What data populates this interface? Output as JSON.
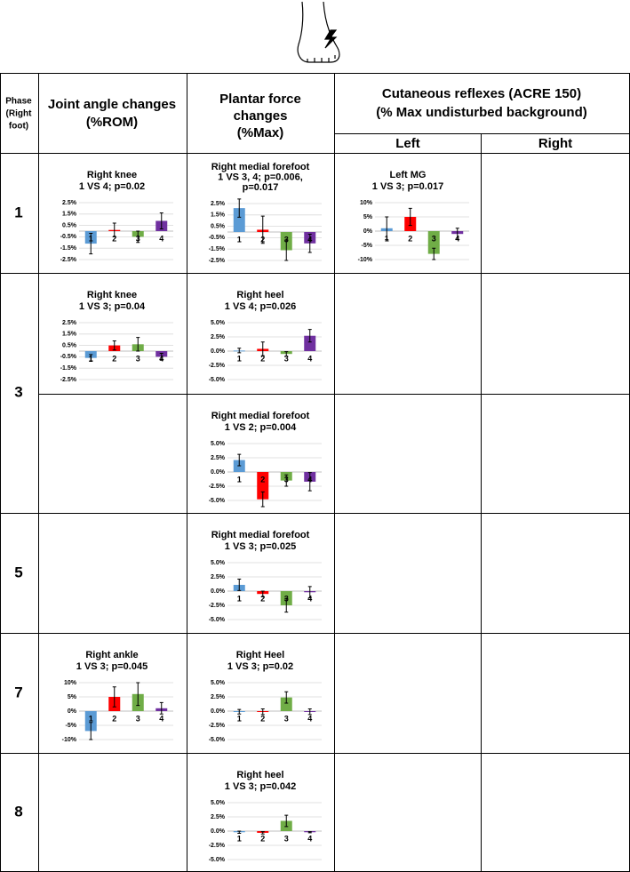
{
  "table": {
    "header": {
      "phase": [
        "Phase",
        "(Right",
        "foot)"
      ],
      "joint": [
        "Joint angle changes",
        "(%ROM)"
      ],
      "plantar": [
        "Plantar force",
        "changes",
        "(%Max)"
      ],
      "cutaneous": [
        "Cutaneous reflexes (ACRE 150)",
        "(% Max undisturbed background)"
      ],
      "left": "Left",
      "right": "Right"
    },
    "phases": [
      "1",
      "3",
      "5",
      "7",
      "8"
    ]
  },
  "colors": [
    "#5b9bd5",
    "#ff0000",
    "#70ad47",
    "#7030a0"
  ],
  "charts": [
    {
      "type": "bar",
      "title": [
        "Right knee",
        "1 VS 4; p=0.02"
      ],
      "categories": [
        "1",
        "2",
        "3",
        "4"
      ],
      "values": [
        -1.1,
        0.1,
        -0.5,
        0.9
      ],
      "errors": [
        0.9,
        0.6,
        0.5,
        0.7
      ],
      "ylim": [
        -2.5,
        2.5
      ],
      "yticks": [
        {
          "value": 2.5,
          "label": "2.5%"
        },
        {
          "value": 1.5,
          "label": "1.5%"
        },
        {
          "value": 0.5,
          "label": "0.5%"
        },
        {
          "value": -0.5,
          "label": "-0.5%"
        },
        {
          "value": -1.5,
          "label": "-1.5%"
        },
        {
          "value": -2.5,
          "label": "-2.5%"
        }
      ]
    },
    {
      "type": "bar",
      "title": [
        "Right medial forefoot",
        "1 VS 3, 4; p=0.006,",
        "p=0.017"
      ],
      "categories": [
        "1",
        "2",
        "3",
        "4"
      ],
      "values": [
        2.1,
        0.2,
        -1.6,
        -1.0
      ],
      "errors": [
        0.8,
        1.2,
        0.9,
        0.8
      ],
      "ylim": [
        -2.5,
        2.5
      ],
      "yticks": [
        {
          "value": 2.5,
          "label": "2.5%"
        },
        {
          "value": 1.5,
          "label": "1.5%"
        },
        {
          "value": 0.5,
          "label": "0.5%"
        },
        {
          "value": -0.5,
          "label": "-0.5%"
        },
        {
          "value": -1.5,
          "label": "-1.5%"
        },
        {
          "value": -2.5,
          "label": "-2.5%"
        }
      ]
    },
    {
      "type": "bar",
      "title": [
        "Left MG",
        "1 VS 3; p=0.017"
      ],
      "categories": [
        "1",
        "2",
        "3",
        "4"
      ],
      "values": [
        1,
        5,
        -8,
        -1
      ],
      "errors": [
        4,
        3,
        2,
        2
      ],
      "ylim": [
        -10,
        10
      ],
      "yticks": [
        {
          "value": 10,
          "label": "10%"
        },
        {
          "value": 5,
          "label": "5%"
        },
        {
          "value": 0,
          "label": "0%"
        },
        {
          "value": -5,
          "label": "-5%"
        },
        {
          "value": -10,
          "label": "-10%"
        }
      ]
    },
    {
      "type": "bar",
      "title": [
        "Right knee",
        "1 VS 3; p=0.04"
      ],
      "categories": [
        "1",
        "2",
        "3",
        "4"
      ],
      "values": [
        -0.6,
        0.5,
        0.6,
        -0.5
      ],
      "errors": [
        0.3,
        0.4,
        0.6,
        0.3
      ],
      "ylim": [
        -2.5,
        2.5
      ],
      "yticks": [
        {
          "value": 2.5,
          "label": "2.5%"
        },
        {
          "value": 1.5,
          "label": "1.5%"
        },
        {
          "value": 0.5,
          "label": "0.5%"
        },
        {
          "value": -0.5,
          "label": "-0.5%"
        },
        {
          "value": -1.5,
          "label": "-1.5%"
        },
        {
          "value": -2.5,
          "label": "-2.5%"
        }
      ]
    },
    {
      "type": "bar",
      "title": [
        "Right heel",
        "1 VS 4; p=0.026"
      ],
      "categories": [
        "1",
        "2",
        "3",
        "4"
      ],
      "values": [
        0.1,
        0.4,
        -0.5,
        2.7
      ],
      "errors": [
        0.4,
        1.2,
        0.4,
        1.1
      ],
      "ylim": [
        -5,
        5
      ],
      "yticks": [
        {
          "value": 5,
          "label": "5.0%"
        },
        {
          "value": 2.5,
          "label": "2.5%"
        },
        {
          "value": 0,
          "label": "0.0%"
        },
        {
          "value": -2.5,
          "label": "-2.5%"
        },
        {
          "value": -5,
          "label": "-5.0%"
        }
      ]
    },
    {
      "type": "bar",
      "title": [
        "Right medial forefoot",
        "1 VS 2; p=0.004"
      ],
      "categories": [
        "1",
        "2",
        "3",
        "4"
      ],
      "values": [
        2.1,
        -4.8,
        -1.5,
        -1.7
      ],
      "errors": [
        1.0,
        1.3,
        1.0,
        1.6
      ],
      "ylim": [
        -5,
        5
      ],
      "yticks": [
        {
          "value": 5,
          "label": "5.0%"
        },
        {
          "value": 2.5,
          "label": "2.5%"
        },
        {
          "value": 0,
          "label": "0.0%"
        },
        {
          "value": -2.5,
          "label": "-2.5%"
        },
        {
          "value": -5,
          "label": "-5.0%"
        }
      ]
    },
    {
      "type": "bar",
      "title": [
        "Right medial forefoot",
        "1 VS 3; p=0.025"
      ],
      "categories": [
        "1",
        "2",
        "3",
        "4"
      ],
      "values": [
        1.1,
        -0.5,
        -2.5,
        -0.2
      ],
      "errors": [
        1.0,
        0.5,
        1.2,
        1.0
      ],
      "ylim": [
        -5,
        5
      ],
      "yticks": [
        {
          "value": 5,
          "label": "5.0%"
        },
        {
          "value": 2.5,
          "label": "2.5%"
        },
        {
          "value": 0,
          "label": "0.0%"
        },
        {
          "value": -2.5,
          "label": "-2.5%"
        },
        {
          "value": -5,
          "label": "-5.0%"
        }
      ]
    },
    {
      "type": "bar",
      "title": [
        "Right ankle",
        "1 VS 3; p=0.045"
      ],
      "categories": [
        "1",
        "2",
        "3",
        "4"
      ],
      "values": [
        -7,
        5,
        6,
        1
      ],
      "errors": [
        3,
        3.5,
        4,
        2
      ],
      "ylim": [
        -10,
        10
      ],
      "yticks": [
        {
          "value": 10,
          "label": "10%"
        },
        {
          "value": 5,
          "label": "5%"
        },
        {
          "value": 0,
          "label": "0%"
        },
        {
          "value": -5,
          "label": "-5%"
        },
        {
          "value": -10,
          "label": "-10%"
        }
      ]
    },
    {
      "type": "bar",
      "title": [
        "Right Heel",
        "1 VS 3; p=0.02"
      ],
      "categories": [
        "1",
        "2",
        "3",
        "4"
      ],
      "values": [
        -0.1,
        -0.1,
        2.4,
        -0.1
      ],
      "errors": [
        0.4,
        0.5,
        1.0,
        0.5
      ],
      "ylim": [
        -5,
        5
      ],
      "yticks": [
        {
          "value": 5,
          "label": "5.0%"
        },
        {
          "value": 2.5,
          "label": "2.5%"
        },
        {
          "value": 0,
          "label": "0.0%"
        },
        {
          "value": -2.5,
          "label": "-2.5%"
        },
        {
          "value": -5,
          "label": "-5.0%"
        }
      ]
    },
    {
      "type": "bar",
      "title": [
        "Right heel",
        "1 VS 3; p=0.042"
      ],
      "categories": [
        "1",
        "2",
        "3",
        "4"
      ],
      "values": [
        -0.2,
        -0.3,
        1.8,
        -0.2
      ],
      "errors": [
        0.2,
        0.2,
        1.0,
        0.1
      ],
      "ylim": [
        -5,
        5
      ],
      "yticks": [
        {
          "value": 5,
          "label": "5.0%"
        },
        {
          "value": 2.5,
          "label": "2.5%"
        },
        {
          "value": 0,
          "label": "0.0%"
        },
        {
          "value": -2.5,
          "label": "-2.5%"
        },
        {
          "value": -5,
          "label": "-5.0%"
        }
      ]
    }
  ]
}
